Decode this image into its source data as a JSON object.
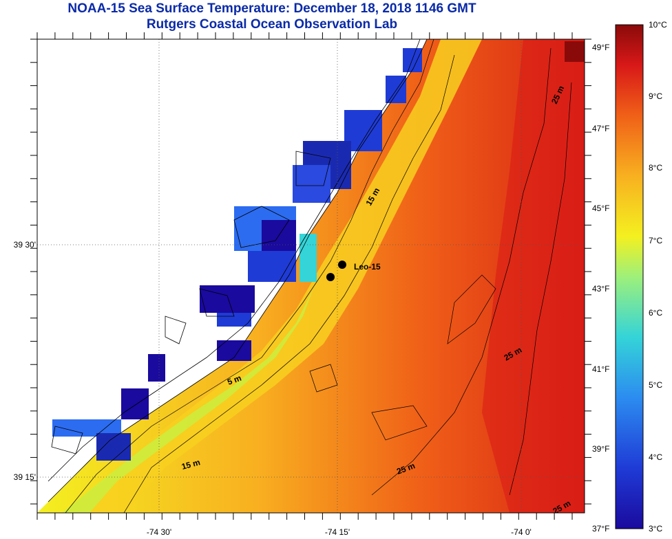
{
  "title": "NOAA-15 Sea Surface Temperature:  December 18, 2018 1146 GMT",
  "subtitle": "Rutgers Coastal Ocean Observation Lab",
  "station_label": "Leo-15",
  "lat_labels": [
    "39 30'",
    "39 15'"
  ],
  "lon_labels": [
    "-74 30'",
    "-74 15'",
    "-74 0'"
  ],
  "contour_labels": [
    "15 m",
    "25 m",
    "5 m",
    "25 m",
    "15 m",
    "25 m",
    "25 m"
  ],
  "colorbar": {
    "celsius": [
      "10°C",
      "9°C",
      "8°C",
      "7°C",
      "6°C",
      "5°C",
      "4°C",
      "3°C"
    ],
    "fahrenheit": [
      "49°F",
      "47°F",
      "45°F",
      "43°F",
      "41°F",
      "39°F",
      "37°F"
    ],
    "colors": [
      "#1a0a9e",
      "#1f3bd6",
      "#2c8cf0",
      "#34d4d8",
      "#9ef07a",
      "#f4f020",
      "#f8b020",
      "#f06018",
      "#d81818",
      "#8a0a0a"
    ]
  },
  "legend_colors": {
    "land": "#ffffff",
    "coast_line": "#000000",
    "title_color": "#0a2aa8"
  }
}
